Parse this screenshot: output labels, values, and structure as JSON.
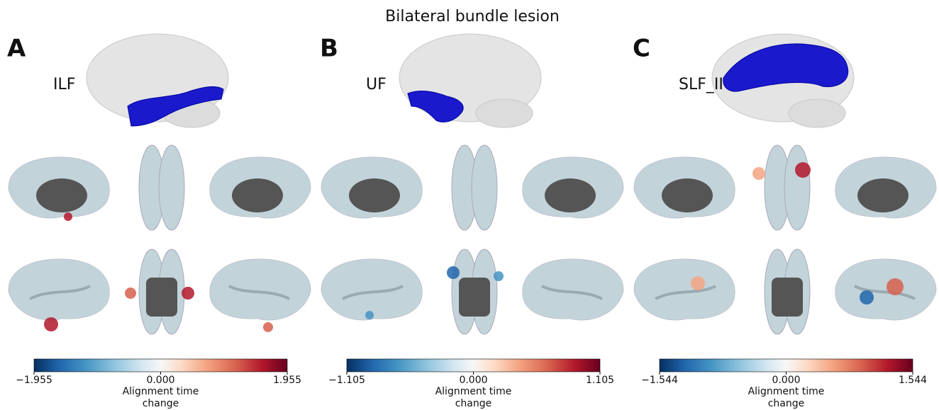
{
  "title": "Bilateral bundle lesion",
  "panels": [
    {
      "letter": "A",
      "bundle": "ILF",
      "clim": [
        -1.955,
        1.955
      ],
      "ticks": [
        {
          "value": -1.955,
          "label": "−1.955"
        },
        {
          "value": 0,
          "label": "0.000"
        },
        {
          "value": 1.955,
          "label": "1.955"
        }
      ],
      "colorbar_label": "Alignment time change"
    },
    {
      "letter": "B",
      "bundle": "UF",
      "clim": [
        -1.105,
        1.105
      ],
      "ticks": [
        {
          "value": -1.105,
          "label": "−1.105"
        },
        {
          "value": 0,
          "label": "0.000"
        },
        {
          "value": 1.105,
          "label": "1.105"
        }
      ],
      "colorbar_label": "Alignment time change"
    },
    {
      "letter": "C",
      "bundle": "SLF_II",
      "clim": [
        -1.544,
        1.544
      ],
      "ticks": [
        {
          "value": -1.544,
          "label": "−1.544"
        },
        {
          "value": 0,
          "label": "0.000"
        },
        {
          "value": 1.544,
          "label": "1.544"
        }
      ],
      "colorbar_label": "Alignment time change"
    }
  ]
}
